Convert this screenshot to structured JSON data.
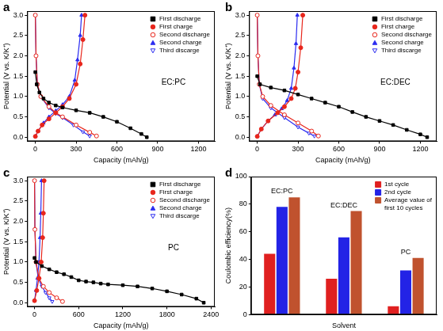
{
  "chart_data": [
    {
      "panel": "a",
      "type": "line",
      "annotations": [
        "EC:PC"
      ],
      "x_label": "Capacity (mAh/g)",
      "y_label": "Potential (V vs. K/K⁺)",
      "xlim": [
        -60,
        1320
      ],
      "xticks": [
        0,
        300,
        600,
        900,
        1200
      ],
      "ylim": [
        -0.1,
        3.1
      ],
      "yticks": [
        {
          "value": 0,
          "label": "0.0"
        },
        {
          "value": 0.5,
          "label": "0.5"
        },
        {
          "value": 1,
          "label": "1.0"
        },
        {
          "value": 1.5,
          "label": "1.5"
        },
        {
          "value": 2,
          "label": "2.0"
        },
        {
          "value": 2.5,
          "label": "2.5"
        },
        {
          "value": 3,
          "label": "3.0"
        }
      ],
      "grid": false,
      "legend": "upper right",
      "series": [
        {
          "name": "First discharge",
          "color": "#000000",
          "marker": "square",
          "x": [
            0,
            10,
            30,
            60,
            100,
            150,
            200,
            300,
            400,
            500,
            600,
            700,
            780,
            820
          ],
          "values": [
            1.6,
            1.3,
            1.1,
            0.95,
            0.85,
            0.78,
            0.73,
            0.66,
            0.6,
            0.5,
            0.38,
            0.22,
            0.08,
            0.0
          ]
        },
        {
          "name": "First charge",
          "color": "#e8261c",
          "marker": "circle",
          "x": [
            0,
            20,
            50,
            100,
            150,
            200,
            250,
            300,
            330,
            350,
            365
          ],
          "values": [
            0.02,
            0.15,
            0.3,
            0.45,
            0.6,
            0.75,
            0.95,
            1.3,
            1.8,
            2.4,
            3.0
          ]
        },
        {
          "name": "Second discharge",
          "color": "#e8261c",
          "marker": "open_circle",
          "x": [
            0,
            5,
            15,
            40,
            100,
            150,
            200,
            300,
            400,
            450
          ],
          "values": [
            3.0,
            2.0,
            1.3,
            1.0,
            0.75,
            0.6,
            0.5,
            0.3,
            0.12,
            0.03
          ]
        },
        {
          "name": "Second charge",
          "color": "#2b2bf0",
          "marker": "triangle",
          "x": [
            0,
            20,
            60,
            100,
            150,
            200,
            250,
            290,
            310,
            330,
            340
          ],
          "values": [
            0.02,
            0.15,
            0.35,
            0.5,
            0.65,
            0.8,
            1.0,
            1.4,
            1.9,
            2.5,
            3.0
          ]
        },
        {
          "name": "Third discarge",
          "color": "#2b2bf0",
          "marker": "open_triangle_down",
          "x": [
            0,
            5,
            15,
            40,
            100,
            150,
            200,
            280,
            350,
            400
          ],
          "values": [
            3.0,
            2.0,
            1.3,
            1.0,
            0.72,
            0.58,
            0.48,
            0.3,
            0.13,
            0.03
          ]
        }
      ]
    },
    {
      "panel": "b",
      "type": "line",
      "annotations": [
        "EC:DEC"
      ],
      "x_label": "Capacity (mAh/g)",
      "y_label": "Potential (V vs. K/K⁺)",
      "xlim": [
        -60,
        1320
      ],
      "xticks": [
        0,
        300,
        600,
        900,
        1200
      ],
      "ylim": [
        -0.1,
        3.1
      ],
      "yticks": [
        {
          "value": 0,
          "label": "0.0"
        },
        {
          "value": 0.5,
          "label": "0.5"
        },
        {
          "value": 1,
          "label": "1.0"
        },
        {
          "value": 1.5,
          "label": "1.5"
        },
        {
          "value": 2,
          "label": "2.0"
        },
        {
          "value": 2.5,
          "label": "2.5"
        },
        {
          "value": 3,
          "label": "3.0"
        }
      ],
      "grid": false,
      "legend": "upper right",
      "series": [
        {
          "name": "First discharge",
          "color": "#000000",
          "marker": "square",
          "x": [
            0,
            20,
            100,
            200,
            300,
            400,
            500,
            600,
            700,
            800,
            900,
            1000,
            1100,
            1200,
            1250
          ],
          "values": [
            1.5,
            1.3,
            1.22,
            1.15,
            1.05,
            0.95,
            0.85,
            0.75,
            0.62,
            0.5,
            0.4,
            0.3,
            0.18,
            0.07,
            0.0
          ]
        },
        {
          "name": "First charge",
          "color": "#e8261c",
          "marker": "circle",
          "x": [
            0,
            30,
            80,
            150,
            200,
            250,
            280,
            300,
            320,
            335
          ],
          "values": [
            0.02,
            0.2,
            0.4,
            0.6,
            0.75,
            0.95,
            1.2,
            1.6,
            2.2,
            3.0
          ]
        },
        {
          "name": "Second discharge",
          "color": "#e8261c",
          "marker": "open_circle",
          "x": [
            0,
            5,
            15,
            40,
            100,
            200,
            300,
            400,
            450
          ],
          "values": [
            3.0,
            2.0,
            1.3,
            1.0,
            0.78,
            0.55,
            0.35,
            0.15,
            0.03
          ]
        },
        {
          "name": "Second charge",
          "color": "#2b2bf0",
          "marker": "triangle",
          "x": [
            0,
            30,
            80,
            130,
            180,
            220,
            250,
            270,
            285,
            295
          ],
          "values": [
            0.02,
            0.2,
            0.4,
            0.55,
            0.7,
            0.9,
            1.2,
            1.7,
            2.3,
            3.0
          ]
        },
        {
          "name": "Third discarge",
          "color": "#2b2bf0",
          "marker": "open_triangle_down",
          "x": [
            0,
            5,
            15,
            40,
            100,
            200,
            300,
            380,
            420
          ],
          "values": [
            3.0,
            2.0,
            1.3,
            0.95,
            0.72,
            0.48,
            0.25,
            0.1,
            0.03
          ]
        }
      ]
    },
    {
      "panel": "c",
      "type": "line",
      "annotations": [
        "PC"
      ],
      "x_label": "Capacity (mAh/g)",
      "y_label": "Potential (V vs. K/K⁺)",
      "xlim": [
        -100,
        2450
      ],
      "xticks": [
        0,
        600,
        1200,
        1800,
        2400
      ],
      "ylim": [
        -0.1,
        3.1
      ],
      "yticks": [
        {
          "value": 0,
          "label": "0.0"
        },
        {
          "value": 0.5,
          "label": "0.5"
        },
        {
          "value": 1,
          "label": "1.0"
        },
        {
          "value": 1.5,
          "label": "1.5"
        },
        {
          "value": 2,
          "label": "2.0"
        },
        {
          "value": 2.5,
          "label": "2.5"
        },
        {
          "value": 3,
          "label": "3.0"
        }
      ],
      "grid": false,
      "legend": "upper right",
      "series": [
        {
          "name": "First discharge",
          "color": "#000000",
          "marker": "square",
          "x": [
            0,
            20,
            100,
            200,
            300,
            400,
            500,
            600,
            700,
            800,
            900,
            1000,
            1200,
            1400,
            1600,
            1800,
            2000,
            2200,
            2300
          ],
          "values": [
            1.1,
            1.0,
            0.9,
            0.82,
            0.75,
            0.7,
            0.63,
            0.55,
            0.52,
            0.5,
            0.47,
            0.45,
            0.43,
            0.4,
            0.35,
            0.28,
            0.2,
            0.1,
            0.0
          ]
        },
        {
          "name": "First charge",
          "color": "#e8261c",
          "marker": "circle",
          "x": [
            0,
            30,
            60,
            90,
            110,
            120,
            130
          ],
          "values": [
            0.05,
            0.3,
            0.6,
            1.0,
            1.6,
            2.2,
            3.0
          ]
        },
        {
          "name": "Second discharge",
          "color": "#e8261c",
          "marker": "open_circle",
          "x": [
            0,
            5,
            20,
            60,
            120,
            200,
            300,
            380
          ],
          "values": [
            3.0,
            1.8,
            1.0,
            0.6,
            0.4,
            0.25,
            0.12,
            0.03
          ]
        },
        {
          "name": "Second charge",
          "color": "#2b2bf0",
          "marker": "triangle",
          "x": [
            0,
            20,
            40,
            60,
            75,
            85,
            95
          ],
          "values": [
            0.05,
            0.3,
            0.6,
            1.0,
            1.6,
            2.2,
            3.0
          ]
        },
        {
          "name": "Third discarge",
          "color": "#2b2bf0",
          "marker": "open_triangle_down",
          "x": [
            0,
            5,
            20,
            50,
            100,
            150,
            200,
            240
          ],
          "values": [
            3.0,
            1.8,
            1.0,
            0.6,
            0.4,
            0.25,
            0.12,
            0.03
          ]
        }
      ]
    },
    {
      "panel": "d",
      "type": "bar",
      "x_label": "Solvent",
      "y_label": "Coulombic efficiency(%)",
      "categories": [
        "EC:PC",
        "EC:DEC",
        "PC"
      ],
      "ylim": [
        0,
        100
      ],
      "yticks": [
        0,
        20,
        40,
        60,
        80,
        100
      ],
      "grid": false,
      "legend": "upper right",
      "tick_labels": "y",
      "series": [
        {
          "name": "1st cycle",
          "color": "#e02020",
          "values": [
            44,
            26,
            6
          ]
        },
        {
          "name": "2nd cycle",
          "color": "#2323e6",
          "values": [
            78,
            56,
            32
          ]
        },
        {
          "name": "Average value of first 10 cycles",
          "color": "#c0522e",
          "values": [
            85,
            75,
            41
          ]
        }
      ]
    }
  ]
}
